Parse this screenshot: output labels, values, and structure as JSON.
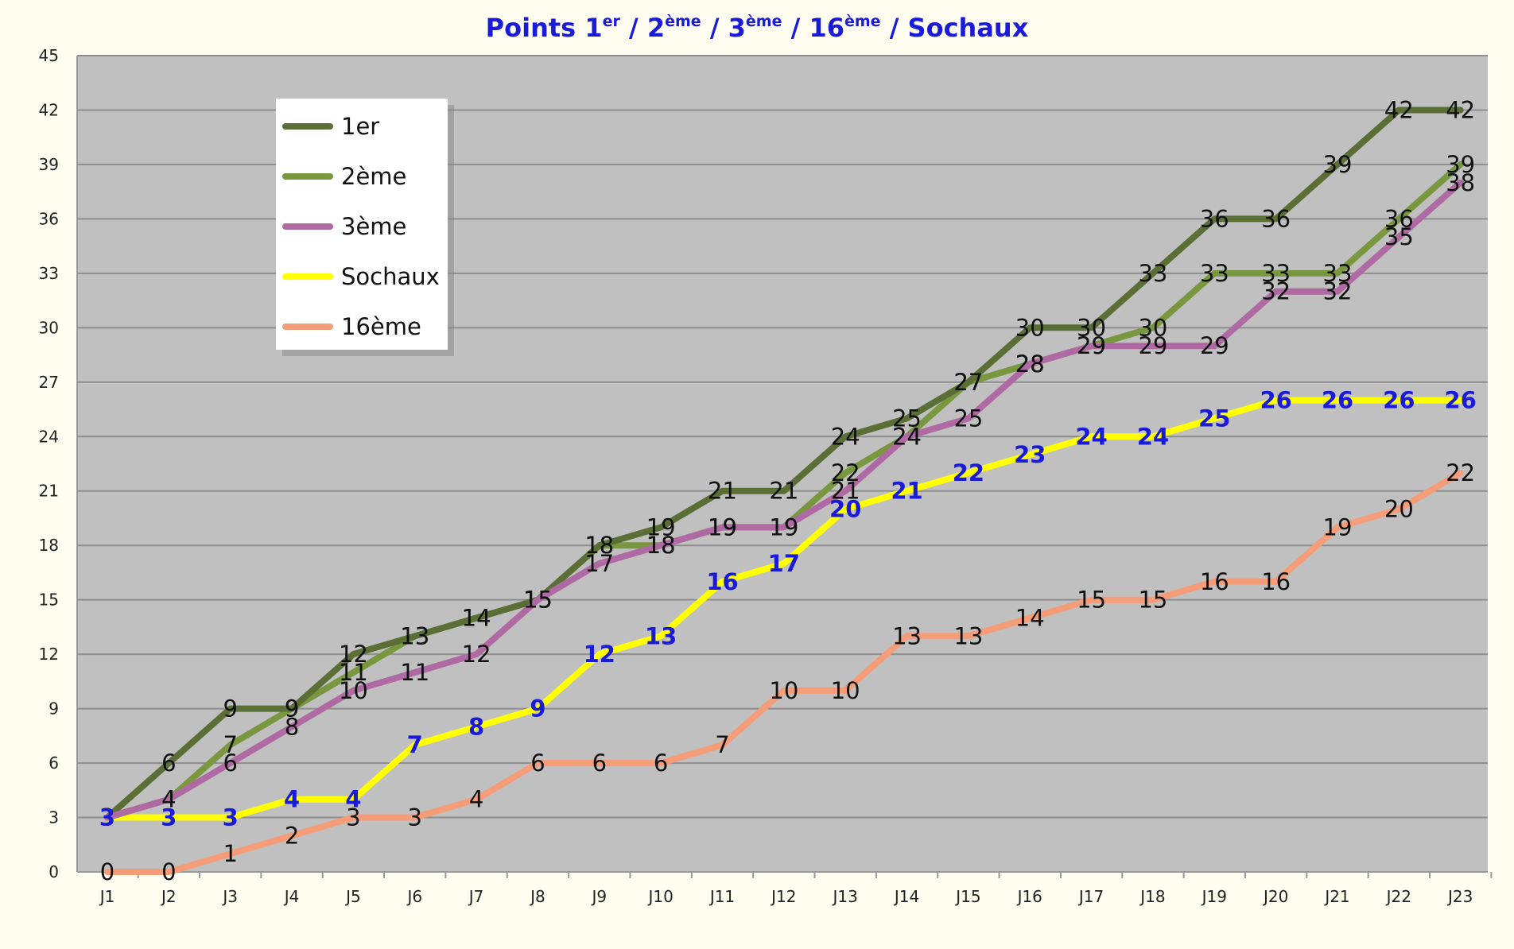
{
  "chart_data": {
    "type": "line",
    "title": {
      "parts": [
        {
          "text": "Points 1",
          "sup": false
        },
        {
          "text": "er",
          "sup": true
        },
        {
          "text": " / 2",
          "sup": false
        },
        {
          "text": "ème",
          "sup": true
        },
        {
          "text": " / 3",
          "sup": false
        },
        {
          "text": "ème",
          "sup": true
        },
        {
          "text": " / 16",
          "sup": false
        },
        {
          "text": "ème",
          "sup": true
        },
        {
          "text": " / Sochaux",
          "sup": false
        }
      ]
    },
    "xlabel": "",
    "ylabel": "",
    "ylim": [
      0,
      45
    ],
    "yticks": [
      "0",
      "3",
      "6",
      "9",
      "12",
      "15",
      "18",
      "21",
      "24",
      "27",
      "30",
      "33",
      "36",
      "39",
      "42",
      "45"
    ],
    "categories": [
      "J1",
      "J2",
      "J3",
      "J4",
      "J5",
      "J6",
      "J7",
      "J8",
      "J9",
      "J10",
      "J11",
      "J12",
      "J13",
      "J14",
      "J15",
      "J16",
      "J17",
      "J18",
      "J19",
      "J20",
      "J21",
      "J22",
      "J23"
    ],
    "grid": true,
    "legend": "top-left",
    "colors": {
      "page_background": "#fffdf0",
      "plot_background": "#c0c0c0",
      "gridline": "#8e8e8e",
      "title": "#1a1ad9",
      "highlight_label": "#1a1ad9"
    },
    "series": [
      {
        "name": "1er",
        "color": "#5a6e35",
        "highlight": false,
        "values": [
          3,
          6,
          9,
          9,
          12,
          13,
          14,
          15,
          18,
          19,
          21,
          21,
          24,
          25,
          27,
          30,
          30,
          33,
          36,
          36,
          39,
          42,
          42
        ]
      },
      {
        "name": "2ème",
        "color": "#79973e",
        "highlight": false,
        "values": [
          3,
          4,
          7,
          9,
          11,
          13,
          14,
          15,
          18,
          18,
          19,
          19,
          22,
          24,
          27,
          28,
          29,
          30,
          33,
          33,
          33,
          36,
          39
        ]
      },
      {
        "name": "3ème",
        "color": "#b06aa3",
        "highlight": false,
        "values": [
          3,
          4,
          6,
          8,
          10,
          11,
          12,
          15,
          17,
          18,
          19,
          19,
          21,
          24,
          25,
          28,
          29,
          29,
          29,
          32,
          32,
          35,
          38
        ]
      },
      {
        "name": "Sochaux",
        "color": "#ffff00",
        "highlight": true,
        "values": [
          3,
          3,
          3,
          4,
          4,
          7,
          8,
          9,
          12,
          13,
          16,
          17,
          20,
          21,
          22,
          23,
          24,
          24,
          25,
          26,
          26,
          26,
          26
        ]
      },
      {
        "name": "16ème",
        "color": "#f59c78",
        "highlight": false,
        "values": [
          0,
          0,
          1,
          2,
          3,
          3,
          4,
          6,
          6,
          6,
          7,
          10,
          10,
          13,
          13,
          14,
          15,
          15,
          16,
          16,
          19,
          20,
          22
        ]
      }
    ]
  }
}
